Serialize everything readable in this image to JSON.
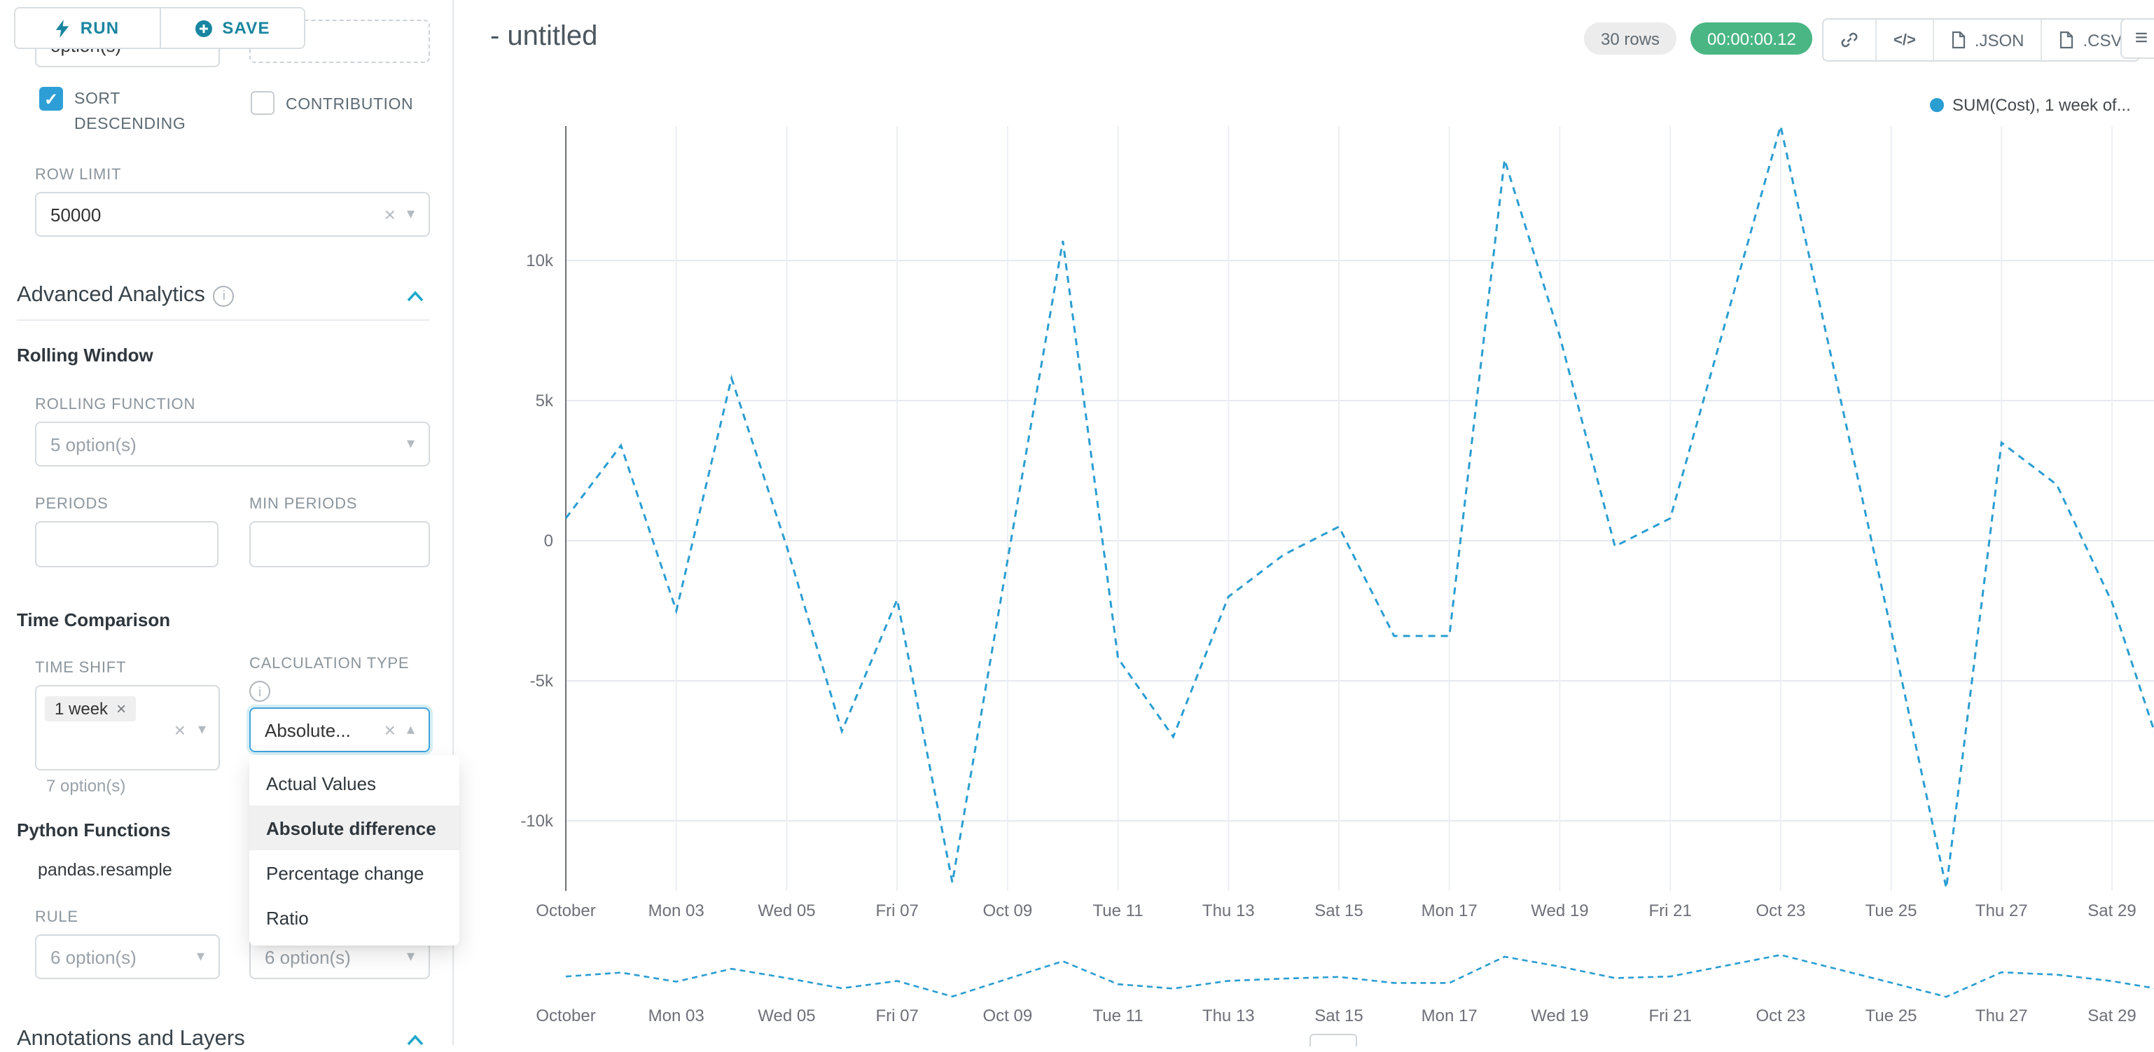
{
  "colors": {
    "accent": "#20a7c9",
    "series": "#2a9dd1",
    "timer_green": "#4ab684",
    "checkbox_blue": "#2e9fd6"
  },
  "icons": {
    "caret_down": "▾",
    "caret_up": "▴",
    "clear": "×",
    "check": "✓",
    "menu": "≡",
    "code": "</>"
  },
  "toolbar": {
    "run": "RUN",
    "save": "SAVE"
  },
  "panel": {
    "top_select_value": "option(s)",
    "sort_descending_label": "SORT DESCENDING",
    "contribution_label": "CONTRIBUTION",
    "row_limit_label": "ROW LIMIT",
    "row_limit_value": "50000",
    "advanced_analytics_title": "Advanced Analytics",
    "rolling_window_title": "Rolling Window",
    "rolling_function_label": "ROLLING FUNCTION",
    "rolling_function_value": "5 option(s)",
    "periods_label": "PERIODS",
    "min_periods_label": "MIN PERIODS",
    "time_comparison_title": "Time Comparison",
    "time_shift_label": "TIME SHIFT",
    "time_shift_tag": "1 week",
    "time_shift_hint": "7 option(s)",
    "calculation_type_label": "CALCULATION TYPE",
    "calculation_type_value": "Absolute...",
    "calc_options": [
      "Actual Values",
      "Absolute difference",
      "Percentage change",
      "Ratio"
    ],
    "calc_selected": "Absolute difference",
    "python_functions_title": "Python Functions",
    "python_functions_sub": "pandas.resample",
    "rule_label": "RULE",
    "rule_value_left": "6 option(s)",
    "rule_value_right": "6 option(s)",
    "annotations_title": "Annotations and Layers"
  },
  "header": {
    "title": "- untitled",
    "rows_badge": "30 rows",
    "timer": "00:00:00.12",
    "json_label": ".JSON",
    "csv_label": ".CSV"
  },
  "chart_data": {
    "type": "line",
    "title": "",
    "legend": [
      {
        "name": "SUM(Cost), 1 week of...",
        "color": "#2a9dd1",
        "line_style": "dashed"
      }
    ],
    "legend_position": "top-right",
    "grid": true,
    "x_tick_labels": [
      "October",
      "Mon 03",
      "Wed 05",
      "Fri 07",
      "Oct 09",
      "Tue 11",
      "Thu 13",
      "Sat 15",
      "Mon 17",
      "Wed 19",
      "Fri 21",
      "Oct 23",
      "Tue 25",
      "Thu 27",
      "Sat 29"
    ],
    "y_tick_labels": [
      "10k",
      "5k",
      "0",
      "-5k",
      "-10k"
    ],
    "y_tick_values": [
      10000,
      5000,
      0,
      -5000,
      -10000
    ],
    "ylim": [
      -12500,
      15000
    ],
    "x_day_of_month": [
      1,
      2,
      3,
      4,
      5,
      6,
      7,
      8,
      9,
      10,
      11,
      12,
      13,
      14,
      15,
      16,
      17,
      18,
      19,
      20,
      21,
      22,
      23,
      24,
      25,
      26,
      27,
      28,
      29,
      30
    ],
    "series": [
      {
        "name": "SUM(Cost), 1 week of...",
        "values": [
          800,
          3400,
          -2500,
          5800,
          -200,
          -6800,
          -2100,
          -12200,
          -700,
          10700,
          -4200,
          -7000,
          -2000,
          -500,
          500,
          -3400,
          -3400,
          13600,
          7300,
          -200,
          800,
          7800,
          14800,
          5800,
          -3200,
          -12400,
          3500,
          2000,
          -2200,
          -8200
        ]
      }
    ],
    "has_range_selector": true
  }
}
